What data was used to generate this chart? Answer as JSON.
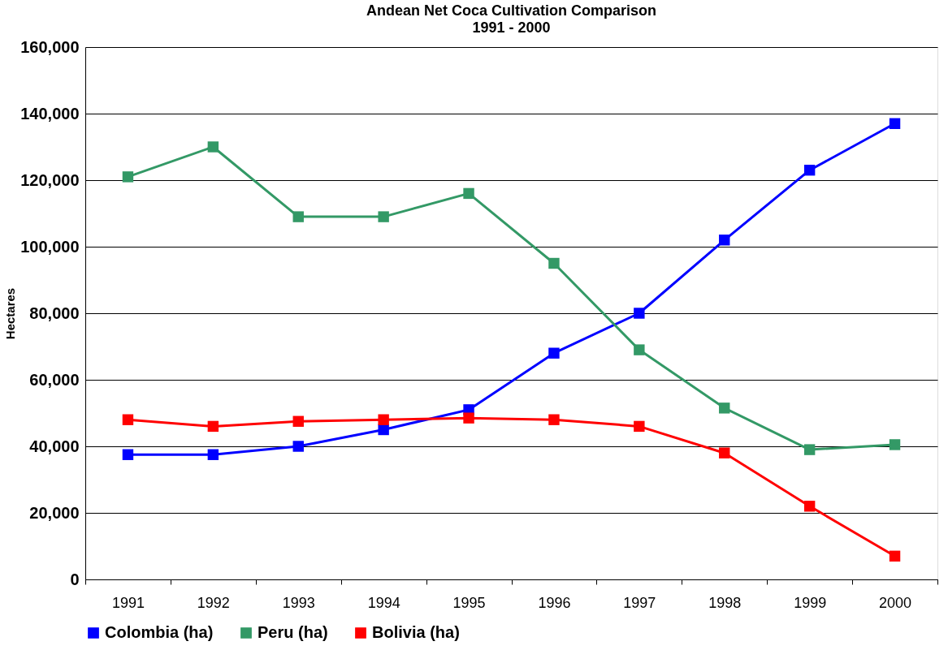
{
  "chart_data": {
    "type": "line",
    "title": "Andean Net Coca Cultivation Comparison",
    "subtitle": "1991 - 2000",
    "ylabel": "Hectares",
    "categories": [
      "1991",
      "1992",
      "1993",
      "1994",
      "1995",
      "1996",
      "1997",
      "1998",
      "1999",
      "2000"
    ],
    "series": [
      {
        "name": "Colombia (ha)",
        "color": "#0000ff",
        "values": [
          37500,
          37500,
          40000,
          45000,
          51000,
          68000,
          80000,
          102000,
          123000,
          137000
        ]
      },
      {
        "name": "Peru (ha)",
        "color": "#339966",
        "values": [
          121000,
          130000,
          109000,
          109000,
          116000,
          95000,
          69000,
          51500,
          39000,
          40500
        ]
      },
      {
        "name": "Bolivia (ha)",
        "color": "#ff0000",
        "values": [
          48000,
          46000,
          47500,
          48000,
          48500,
          48000,
          46000,
          38000,
          22000,
          7000
        ]
      }
    ],
    "ylim": [
      0,
      160000
    ],
    "yticks": [
      0,
      {
        "value": 20000,
        "label": "20,000"
      },
      {
        "value": 40000,
        "label": "40,000"
      },
      {
        "value": 60000,
        "label": "60,000"
      },
      {
        "value": 80000,
        "label": "80,000"
      },
      {
        "value": 100000,
        "label": "100,000"
      },
      {
        "value": 120000,
        "label": "120,000"
      },
      {
        "value": 140000,
        "label": "140,000"
      },
      {
        "value": 160000,
        "label": "160,000"
      }
    ],
    "grid": "y",
    "legend": "bottom",
    "marker": "square",
    "line_style": "solid"
  }
}
